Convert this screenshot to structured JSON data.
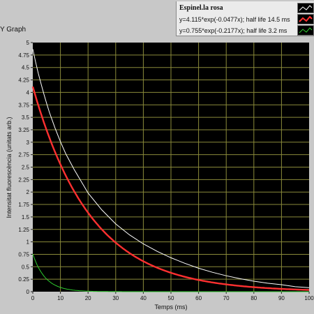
{
  "graph": {
    "title_partial": "Y Graph"
  },
  "legend": {
    "title": "Espinel.la rosa",
    "fit1_label": "y=4.115*exp(-0.0477x); half life 14.5 ms",
    "fit2_label": "y=0.755*exp(-0.2177x); half life 3.2 ms"
  },
  "colors": {
    "plot_bg": "#000000",
    "grid": "#8a8a3a",
    "data_white": "#ffffff",
    "fit_red": "#ff3030",
    "fit_green": "#2ecc2e"
  },
  "chart_data": {
    "type": "line",
    "xlabel": "Temps (ms)",
    "ylabel": "Intensitat fluorescència (unitats arb.)",
    "xlim": [
      0,
      100
    ],
    "ylim": [
      0,
      5
    ],
    "grid": true,
    "x_ticks": [
      "0",
      "10",
      "20",
      "30",
      "40",
      "50",
      "60",
      "70",
      "80",
      "90",
      "100"
    ],
    "y_ticks": [
      "0",
      "0.25",
      "0.5",
      "0.75",
      "1",
      "1.25",
      "1.5",
      "1.75",
      "2",
      "2.25",
      "2.5",
      "2.75",
      "3",
      "3.25",
      "3.5",
      "3.75",
      "4",
      "4.25",
      "4.5",
      "4.75",
      "5"
    ],
    "series": [
      {
        "name": "Espinel.la rosa",
        "color": "#ffffff",
        "x": [
          0,
          1,
          2,
          3,
          4,
          5,
          6,
          8,
          10,
          12,
          15,
          20,
          25,
          30,
          35,
          40,
          45,
          50,
          55,
          60,
          65,
          70,
          75,
          80,
          85,
          90,
          95,
          100
        ],
        "y": [
          4.87,
          4.61,
          4.38,
          4.17,
          3.97,
          3.78,
          3.6,
          3.29,
          3.01,
          2.76,
          2.45,
          1.98,
          1.64,
          1.36,
          1.14,
          0.96,
          0.81,
          0.68,
          0.57,
          0.47,
          0.39,
          0.32,
          0.26,
          0.21,
          0.17,
          0.14,
          0.1,
          0.08
        ]
      },
      {
        "name": "y=4.115*exp(-0.0477x); half life 14.5 ms",
        "color": "#ff3030",
        "amplitude": 4.115,
        "rate": 0.0477
      },
      {
        "name": "y=0.755*exp(-0.2177x); half life 3.2 ms",
        "color": "#2ecc2e",
        "amplitude": 0.755,
        "rate": 0.2177
      }
    ]
  }
}
